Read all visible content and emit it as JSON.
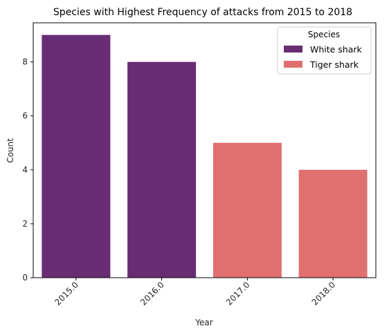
{
  "chart_data": {
    "type": "bar",
    "title": "Species with Highest Frequency of attacks from 2015 to 2018",
    "xlabel": "Year",
    "ylabel": "Count",
    "categories": [
      "2015.0",
      "2016.0",
      "2017.0",
      "2018.0"
    ],
    "values": [
      9,
      8,
      5,
      4
    ],
    "bar_species": [
      "White shark",
      "White shark",
      "Tiger shark",
      "Tiger shark"
    ],
    "ylim": [
      0,
      9.45
    ],
    "yticks": [
      "0",
      "2",
      "4",
      "6",
      "8"
    ],
    "ytick_values": [
      0,
      2,
      4,
      6,
      8
    ],
    "grid": false,
    "legend": {
      "title": "Species",
      "placement": "top-right",
      "entries": [
        {
          "label": "White shark",
          "color": "#6a2c74"
        },
        {
          "label": "Tiger shark",
          "color": "#e07070"
        }
      ]
    }
  }
}
